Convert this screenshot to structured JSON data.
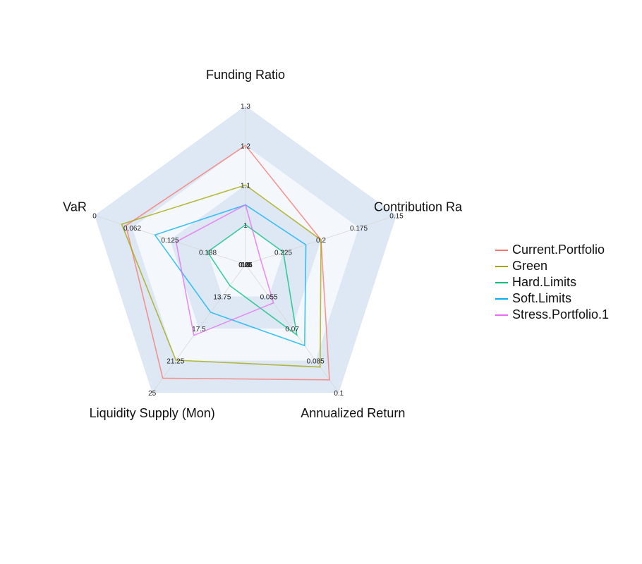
{
  "chart_data": {
    "type": "radar",
    "axes": [
      {
        "label": "Funding Ratio",
        "min": 0.9,
        "max": 1.3,
        "ticks": [
          "0.9",
          "1",
          "1.1",
          "1.2",
          "1.3"
        ]
      },
      {
        "label": "Contribution Ra",
        "min": 0.25,
        "max": 0.15,
        "ticks": [
          "0.25",
          "0.225",
          "0.2",
          "0.175",
          "0.15"
        ]
      },
      {
        "label": "Annualized Return",
        "min": 0.04,
        "max": 0.1,
        "ticks": [
          "0.04",
          "0.055",
          "0.07",
          "0.085",
          "0.1"
        ]
      },
      {
        "label": "Liquidity Supply (Mon)",
        "min": 10,
        "max": 25,
        "ticks": [
          "10",
          "13.75",
          "17.5",
          "21.25",
          "25"
        ]
      },
      {
        "label": "VaR",
        "min": 0.25,
        "max": 0,
        "ticks": [
          "0.25",
          "0.188",
          "0.125",
          "0.062",
          "0"
        ]
      }
    ],
    "series": [
      {
        "name": "Current.Portfolio",
        "color": "#F8766D",
        "values": [
          1.2,
          0.2,
          0.094,
          23.3,
          0.052
        ]
      },
      {
        "name": "Green",
        "color": "#A3A500",
        "values": [
          1.1,
          0.2,
          0.088,
          21.2,
          0.045
        ]
      },
      {
        "name": "Hard.Limits",
        "color": "#00BF7D",
        "values": [
          1.0,
          0.225,
          0.073,
          12.5,
          0.187
        ]
      },
      {
        "name": "Soft.Limits",
        "color": "#00B0F6",
        "values": [
          1.05,
          0.21,
          0.078,
          15.6,
          0.1
        ]
      },
      {
        "name": "Stress.Portfolio.1",
        "color": "#E76BF3",
        "values": [
          1.05,
          0.24,
          0.058,
          18.3,
          0.135
        ]
      }
    ],
    "legend_position": "right",
    "background_bands": true
  }
}
